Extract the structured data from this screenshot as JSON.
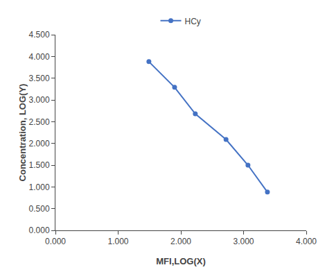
{
  "chart_data": {
    "type": "line",
    "x": [
      1.49,
      1.9,
      2.23,
      2.72,
      3.07,
      3.38
    ],
    "series": [
      {
        "name": "HCy",
        "color": "#4472C4",
        "marker": "circle",
        "values": [
          3.88,
          3.29,
          2.68,
          2.09,
          1.5,
          0.88
        ]
      }
    ],
    "xlabel": "MFI,LOG(X)",
    "ylabel": "Concentration, LOG(Y)",
    "xlim": [
      0.0,
      4.0
    ],
    "ylim": [
      0.0,
      4.5
    ],
    "xticks": [
      {
        "value": 0.0,
        "label": "0.000"
      },
      {
        "value": 1.0,
        "label": "1.000"
      },
      {
        "value": 2.0,
        "label": "2.000"
      },
      {
        "value": 3.0,
        "label": "3.000"
      },
      {
        "value": 4.0,
        "label": "4.000"
      }
    ],
    "yticks": [
      {
        "value": 0.0,
        "label": "0.000"
      },
      {
        "value": 0.5,
        "label": "0.500"
      },
      {
        "value": 1.0,
        "label": "1.000"
      },
      {
        "value": 1.5,
        "label": "1.500"
      },
      {
        "value": 2.0,
        "label": "2.000"
      },
      {
        "value": 2.5,
        "label": "2.500"
      },
      {
        "value": 3.0,
        "label": "3.000"
      },
      {
        "value": 3.5,
        "label": "3.500"
      },
      {
        "value": 4.0,
        "label": "4.000"
      },
      {
        "value": 4.5,
        "label": "4.500"
      }
    ],
    "grid": false,
    "legend": "top"
  }
}
